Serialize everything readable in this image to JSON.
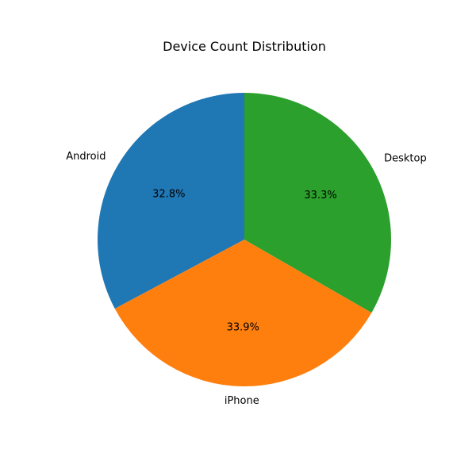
{
  "chart_data": {
    "type": "pie",
    "title": "Device Count Distribution",
    "start_angle_deg": 90,
    "direction": "counterclockwise",
    "slices": [
      {
        "label": "Android",
        "value": 32.8,
        "pct_label": "32.8%",
        "color": "#1f77b4"
      },
      {
        "label": "iPhone",
        "value": 33.9,
        "pct_label": "33.9%",
        "color": "#ff7f0e"
      },
      {
        "label": "Desktop",
        "value": 33.3,
        "pct_label": "33.3%",
        "color": "#2ca02c"
      }
    ]
  }
}
